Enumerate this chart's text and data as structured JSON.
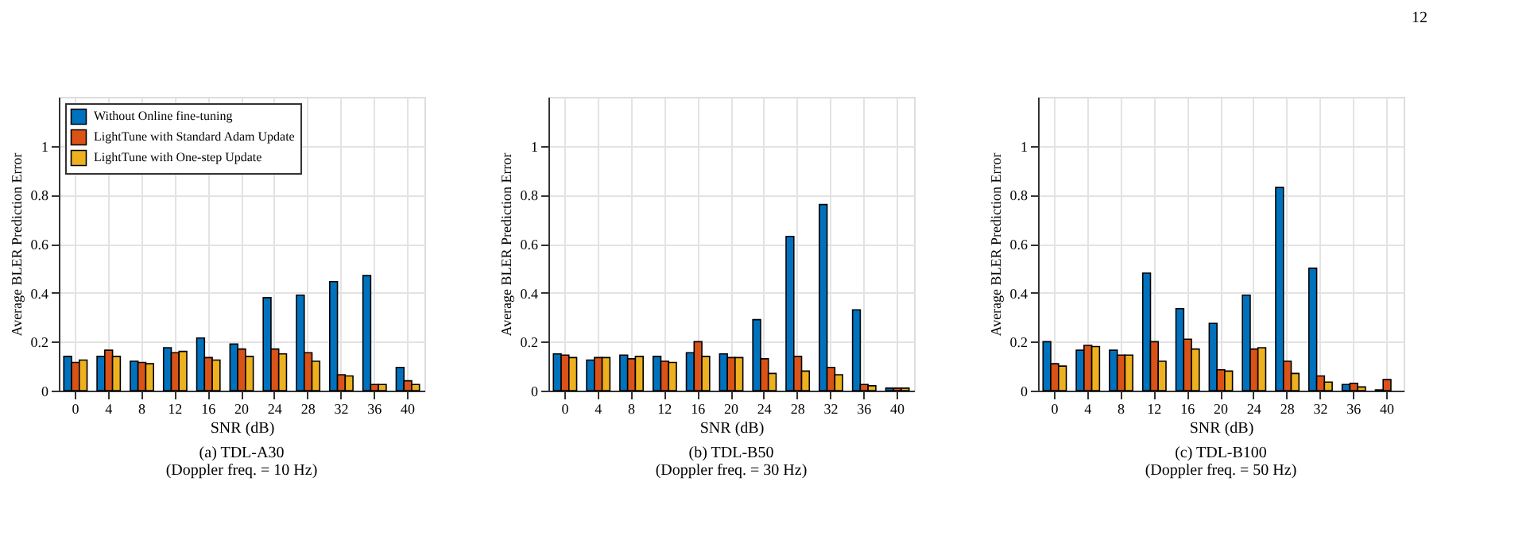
{
  "chart_data": [
    {
      "type": "bar",
      "title": "(a) TDL-A30",
      "subtitle": "(Doppler freq. = 10 Hz)",
      "xlabel": "SNR (dB)",
      "ylabel": "Average BLER Prediction Error",
      "categories": [
        "0",
        "4",
        "8",
        "12",
        "16",
        "20",
        "24",
        "28",
        "32",
        "36",
        "40"
      ],
      "series": [
        {
          "name": "Without Online fine-tuning",
          "color": "#0072bd",
          "values": [
            0.14,
            0.14,
            0.12,
            0.175,
            0.215,
            0.19,
            0.38,
            0.39,
            0.445,
            0.47,
            0.095
          ]
        },
        {
          "name": "LightTune with Standard Adam Update",
          "color": "#d95319",
          "values": [
            0.115,
            0.165,
            0.115,
            0.155,
            0.135,
            0.17,
            0.17,
            0.155,
            0.065,
            0.025,
            0.04
          ]
        },
        {
          "name": "LightTune with One-step Update",
          "color": "#edb120",
          "values": [
            0.125,
            0.14,
            0.11,
            0.16,
            0.125,
            0.14,
            0.15,
            0.12,
            0.06,
            0.025,
            0.025
          ]
        }
      ],
      "ylim": [
        0,
        1.2
      ],
      "yticks": [
        0,
        0.2,
        0.4,
        0.6,
        0.8,
        1
      ],
      "grid": true,
      "legend": "top left"
    },
    {
      "type": "bar",
      "title": "(b) TDL-B50",
      "subtitle": "(Doppler freq. = 30 Hz)",
      "xlabel": "SNR (dB)",
      "ylabel": "Average BLER Prediction Error",
      "categories": [
        "0",
        "4",
        "8",
        "12",
        "16",
        "20",
        "24",
        "28",
        "32",
        "36",
        "40"
      ],
      "series": [
        {
          "name": "Without Online fine-tuning",
          "color": "#0072bd",
          "values": [
            0.15,
            0.125,
            0.145,
            0.14,
            0.155,
            0.15,
            0.29,
            0.63,
            0.76,
            0.33,
            0.01
          ]
        },
        {
          "name": "LightTune with Standard Adam Update",
          "color": "#d95319",
          "values": [
            0.145,
            0.135,
            0.13,
            0.12,
            0.2,
            0.135,
            0.13,
            0.14,
            0.095,
            0.025,
            0.01
          ]
        },
        {
          "name": "LightTune with One-step Update",
          "color": "#edb120",
          "values": [
            0.135,
            0.135,
            0.14,
            0.115,
            0.14,
            0.135,
            0.07,
            0.08,
            0.065,
            0.02,
            0.01
          ]
        }
      ],
      "ylim": [
        0,
        1.2
      ],
      "yticks": [
        0,
        0.2,
        0.4,
        0.6,
        0.8,
        1
      ],
      "grid": true,
      "legend": "top left"
    },
    {
      "type": "bar",
      "title": "(c) TDL-B100",
      "subtitle": "(Doppler freq. = 50 Hz)",
      "xlabel": "SNR (dB)",
      "ylabel": "Average BLER Prediction Error",
      "categories": [
        "0",
        "4",
        "8",
        "12",
        "16",
        "20",
        "24",
        "28",
        "32",
        "36",
        "40"
      ],
      "series": [
        {
          "name": "Without Online fine-tuning",
          "color": "#0072bd",
          "values": [
            0.2,
            0.165,
            0.165,
            0.48,
            0.335,
            0.275,
            0.39,
            0.83,
            0.5,
            0.025,
            0.003
          ]
        },
        {
          "name": "LightTune with Standard Adam Update",
          "color": "#d95319",
          "values": [
            0.11,
            0.185,
            0.145,
            0.2,
            0.21,
            0.085,
            0.17,
            0.12,
            0.06,
            0.03,
            0.045
          ]
        },
        {
          "name": "LightTune with One-step Update",
          "color": "#edb120",
          "values": [
            0.1,
            0.18,
            0.145,
            0.12,
            0.17,
            0.08,
            0.175,
            0.07,
            0.035,
            0.015,
            null
          ]
        }
      ],
      "ylim": [
        0,
        1.2
      ],
      "yticks": [
        0,
        0.2,
        0.4,
        0.6,
        0.8,
        1
      ],
      "grid": true,
      "legend": "top left",
      "annotations": [
        "12"
      ]
    }
  ]
}
